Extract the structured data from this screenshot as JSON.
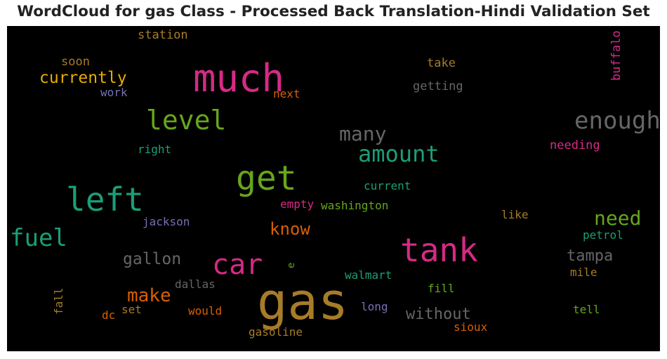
{
  "title": "WordCloud for gas Class - Processed Back Translation-Hindi Validation Set",
  "colors": {
    "gold": "#a67c29",
    "pink": "#d62a86",
    "teal": "#1b9e77",
    "green": "#66a61e",
    "orange": "#d95f02",
    "purple": "#7570b3",
    "gray": "#666666",
    "yellow": "#e6ab02"
  },
  "words": {
    "gas": "gas",
    "much": "much",
    "tank": "tank",
    "left": "left",
    "get": "get",
    "car": "car",
    "level": "level",
    "enough": "enough",
    "amount": "amount",
    "fuel": "fuel",
    "many": "many",
    "need": "need",
    "make": "make",
    "know": "know",
    "currently": "currently",
    "gallon": "gallon",
    "tampa": "tampa",
    "without": "without",
    "buffalo": "buffalo",
    "station": "station",
    "soon": "soon",
    "work": "work",
    "next": "next",
    "take": "take",
    "getting": "getting",
    "right": "right",
    "needing": "needing",
    "current": "current",
    "empty": "empty",
    "washington": "washington",
    "jackson": "jackson",
    "like": "like",
    "petrol": "petrol",
    "e": "e",
    "walmart": "walmart",
    "mile": "mile",
    "dallas": "dallas",
    "fill": "fill",
    "fall": "fall",
    "set": "set",
    "dc": "dc",
    "would": "would",
    "long": "long",
    "tell": "tell",
    "gasoline": "gasoline",
    "sioux": "sioux"
  }
}
